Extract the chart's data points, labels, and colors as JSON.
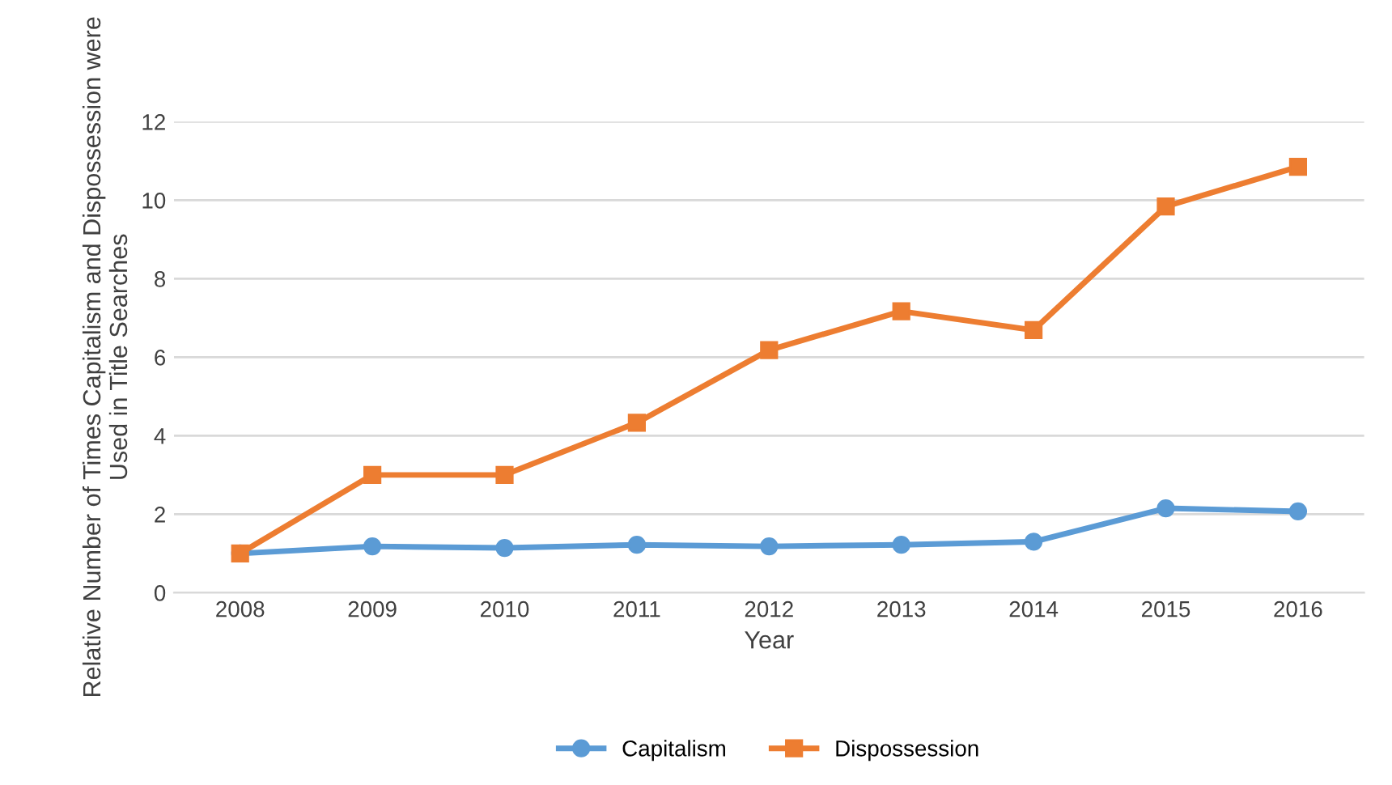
{
  "chart_data": {
    "type": "line",
    "xlabel": "Year",
    "ylabel": "Relative Number of Times Capitalism and Dispossession were Used in Title Searches",
    "categories": [
      "2008",
      "2009",
      "2010",
      "2011",
      "2012",
      "2013",
      "2014",
      "2015",
      "2016"
    ],
    "series": [
      {
        "name": "Capitalism",
        "color": "#5b9bd5",
        "marker": "circle",
        "values": [
          1.0,
          1.18,
          1.14,
          1.22,
          1.18,
          1.22,
          1.3,
          2.15,
          2.07
        ]
      },
      {
        "name": "Dispossession",
        "color": "#ed7d31",
        "marker": "square",
        "values": [
          1.0,
          3.0,
          3.0,
          4.33,
          6.18,
          7.17,
          6.69,
          9.84,
          10.85
        ]
      }
    ],
    "ylim": [
      0,
      12
    ],
    "yticks": [
      0,
      2,
      4,
      6,
      8,
      10,
      12
    ],
    "grid": "y",
    "legend": "bottom",
    "line_style": "solid"
  }
}
